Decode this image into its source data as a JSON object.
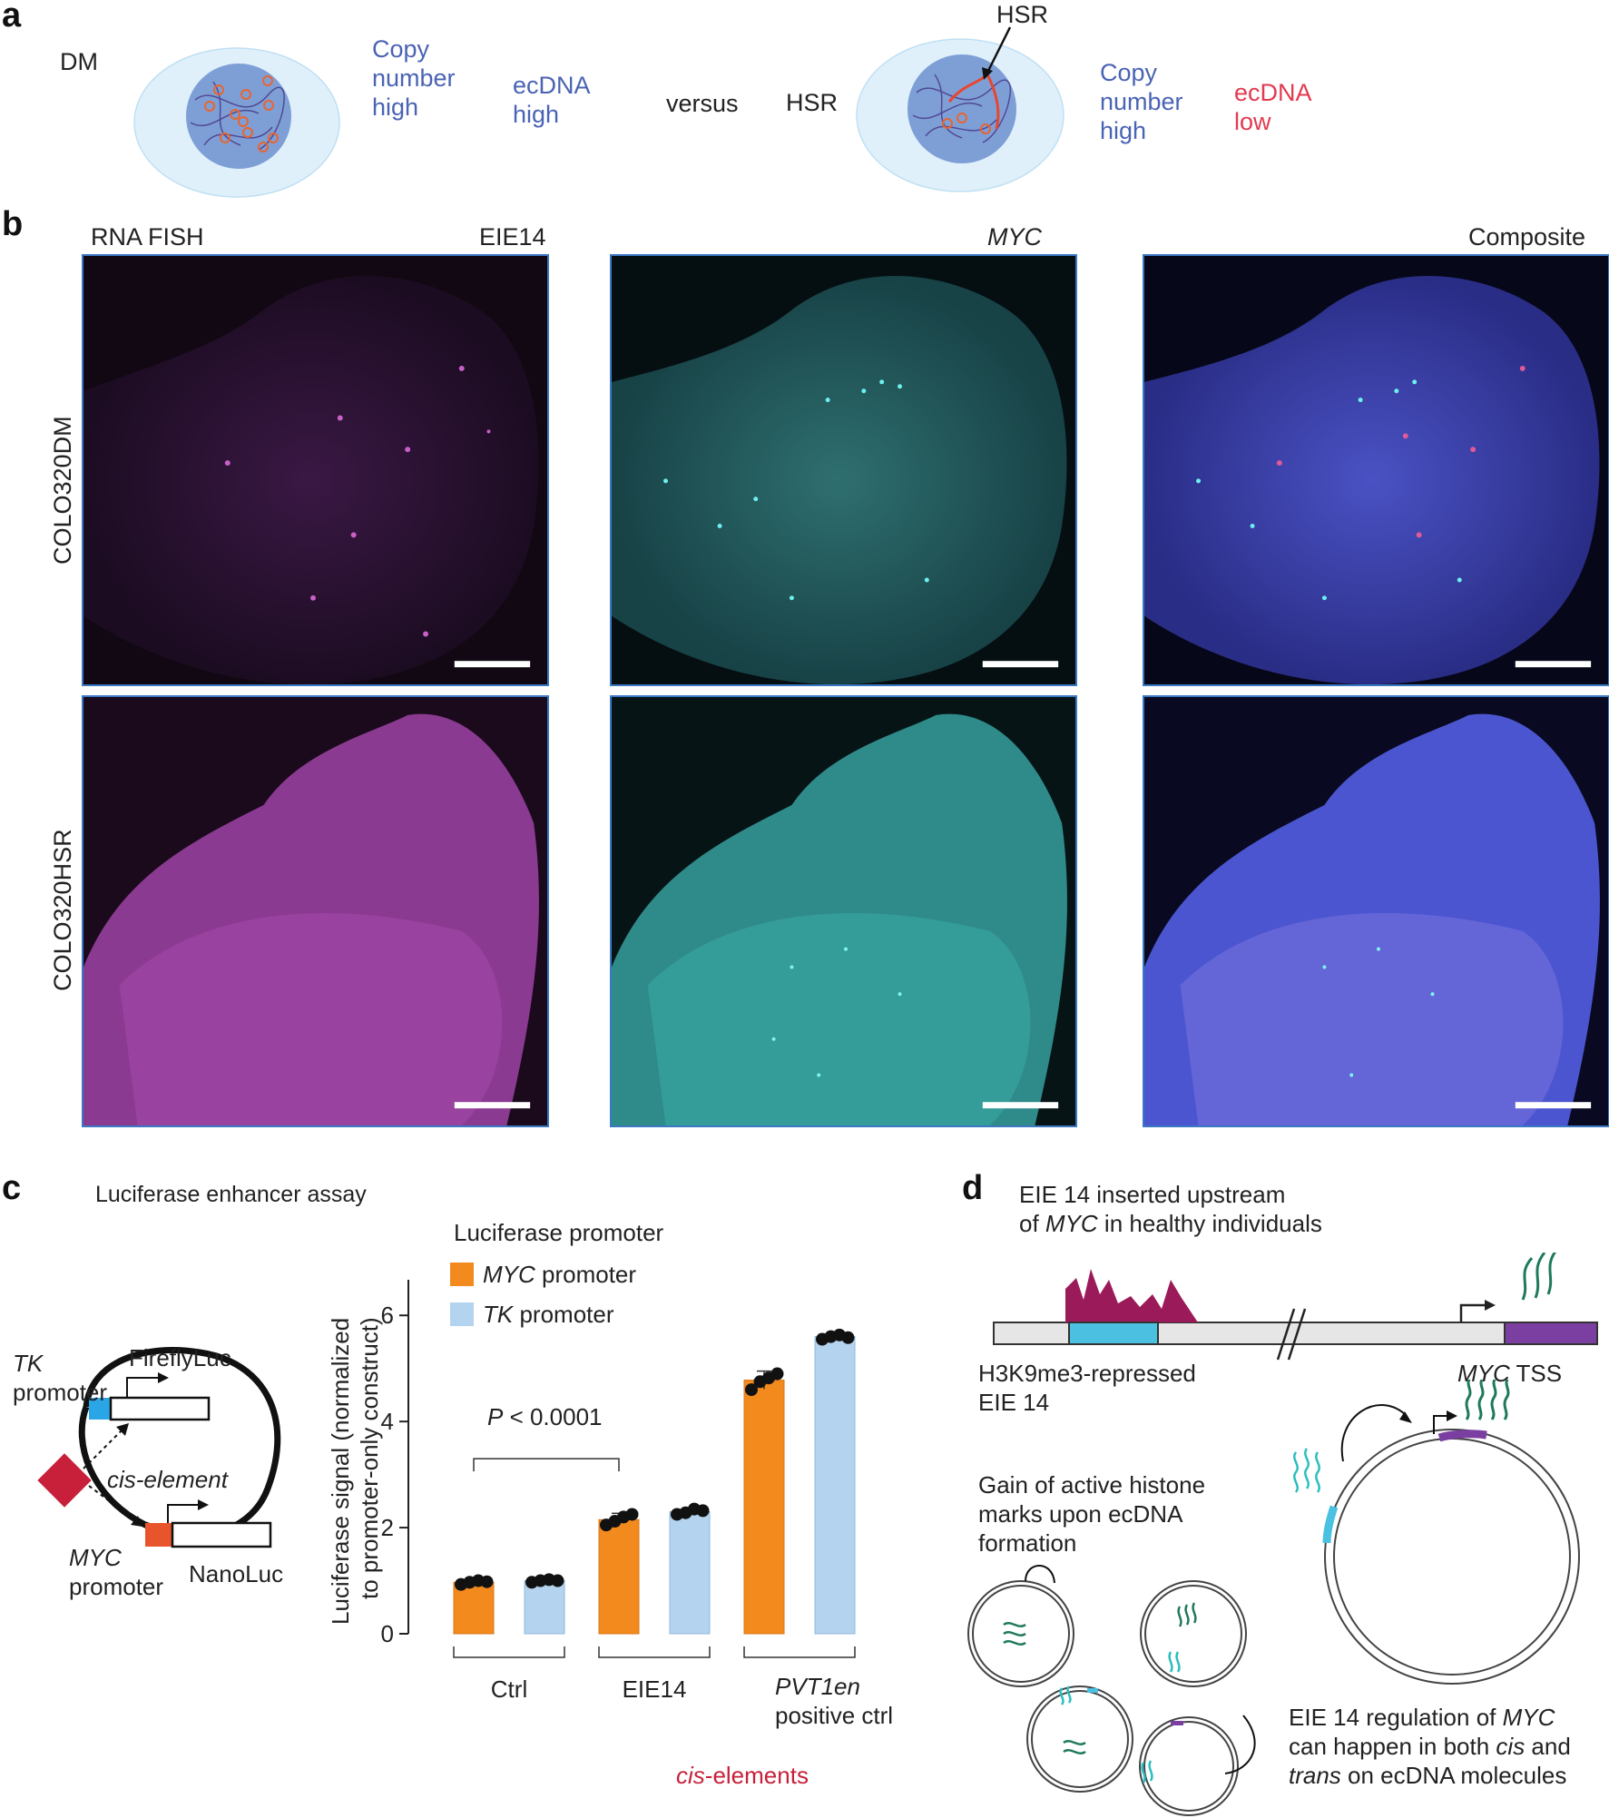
{
  "panel_a": {
    "letter": "a",
    "dm_label": "DM",
    "dm_copy_number": [
      "Copy",
      "number",
      "high"
    ],
    "dm_ecdna": [
      "ecDNA",
      "high"
    ],
    "versus": "versus",
    "hsr_label": "HSR",
    "hsr_arrow_label": "HSR",
    "hsr_copy_number": [
      "Copy",
      "number",
      "high"
    ],
    "hsr_ecdna": [
      "ecDNA",
      "low"
    ],
    "colors": {
      "blue_text": "#4a63b4",
      "red_text": "#e23a50",
      "cell": "#dff0fb",
      "nucleus": "#7e9fd6",
      "ecdna_ring": "#e8652f"
    }
  },
  "panel_b": {
    "letter": "b",
    "header_left": "RNA FISH",
    "col1_title": "EIE14",
    "col2_title": "MYC",
    "col3_title": "Composite",
    "row1_label": "COLO320DM",
    "row2_label": "COLO320HSR"
  },
  "panel_c": {
    "letter": "c",
    "title": "Luciferase enhancer assay",
    "schematic": {
      "tk_promoter": [
        "TK",
        "promoter"
      ],
      "firefly": "FireflyLuc",
      "cis_element": "cis-element",
      "myc_promoter": [
        "MYC",
        "promoter"
      ],
      "nanoluc": "NanoLuc"
    },
    "legend_title": "Luciferase promoter",
    "stat_label": "P < 0.0001",
    "group_bracket_label": "cis-elements",
    "group_label_2": "positive ctrl"
  },
  "chart_data": {
    "type": "bar",
    "ylabel": "Luciferase signal (normalized to promoter-only construct)",
    "ylim": [
      0,
      6.5
    ],
    "yticks": [
      0,
      2,
      4,
      6
    ],
    "categories": [
      "Ctrl",
      "EIE14",
      "PVT1en"
    ],
    "series": [
      {
        "name": "MYC promoter",
        "color": "#f28a1e",
        "values": [
          0.97,
          2.15,
          4.78
        ],
        "errors": [
          0.04,
          0.12,
          0.17
        ],
        "points": [
          [
            0.93,
            0.97,
            1.0,
            0.98
          ],
          [
            2.05,
            2.12,
            2.2,
            2.25
          ],
          [
            4.6,
            4.75,
            4.82,
            4.9
          ]
        ]
      },
      {
        "name": "TK promoter",
        "color": "#b4d3ee",
        "values": [
          1.0,
          2.3,
          5.6
        ],
        "errors": [
          0.03,
          0.07,
          0.06
        ],
        "points": [
          [
            0.97,
            1.0,
            1.02,
            1.0
          ],
          [
            2.25,
            2.28,
            2.35,
            2.32
          ],
          [
            5.55,
            5.6,
            5.63,
            5.58
          ]
        ]
      }
    ]
  },
  "panel_d": {
    "letter": "d",
    "title": [
      "EIE 14 inserted upstream",
      "of ",
      "MYC",
      " in healthy individuals"
    ],
    "repressed_label": [
      "H3K9me3-repressed",
      "EIE 14"
    ],
    "tss_label": [
      "MYC",
      " TSS"
    ],
    "gain_label": [
      "Gain of active histone",
      "marks upon ecDNA",
      "formation"
    ],
    "regulation_label": [
      "EIE 14 regulation of ",
      "MYC",
      "can happen in both ",
      "cis",
      " and",
      "trans",
      " on ecDNA molecules"
    ],
    "colors": {
      "peak": "#9b1b5a",
      "eie14": "#4cc0e0",
      "myc": "#7a3fa0",
      "transcript": "#1f7a5a",
      "track": "#e6e6e6"
    }
  }
}
